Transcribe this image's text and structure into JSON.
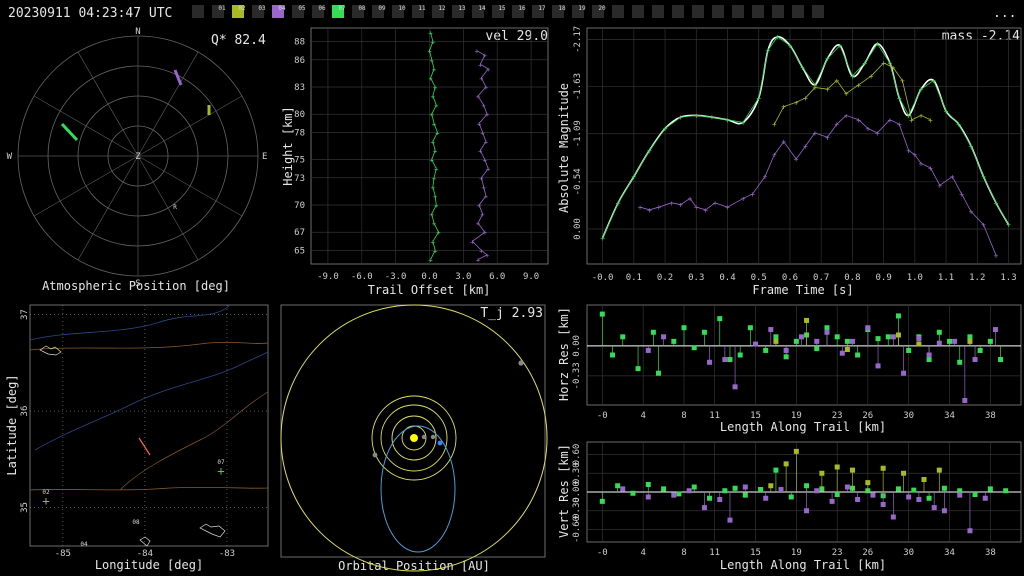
{
  "header": {
    "timestamp": "20230911 04:23:47 UTC",
    "menu": "..."
  },
  "station_badges": [
    "01",
    "02",
    "03",
    "04",
    "05",
    "06",
    "07",
    "08",
    "09",
    "10",
    "11",
    "12",
    "13",
    "14",
    "15",
    "16",
    "17",
    "18",
    "19",
    "20"
  ],
  "colors": {
    "green": "#33dd55",
    "purple": "#9966cc",
    "olive": "#aabb22",
    "white": "#ffffff",
    "yellow": "#e0e060",
    "blue": "#3388ff"
  },
  "panels": {
    "polar": {
      "title": "Atmospheric Position [deg]",
      "stat": "Q* 82.4",
      "compass": {
        "n": "N",
        "s": "S",
        "e": "E",
        "w": "W",
        "z": "Z",
        "r": "R"
      }
    },
    "height": {
      "title": "Trail Offset [km]",
      "ylabel": "Height [km]",
      "stat": "vel 29.0"
    },
    "mag": {
      "title": "Frame Time [s]",
      "ylabel": "Absolute Magnitude",
      "stat": "mass -2.14"
    },
    "map": {
      "title": "Longitude [deg]",
      "ylabel": "Latitude [deg]",
      "station_labels": [
        "02",
        "07",
        "08",
        "04"
      ]
    },
    "orbit": {
      "title": "Orbital Position [AU]",
      "stat": "T_j 2.93"
    },
    "horz": {
      "title": "Length Along Trail [km]",
      "ylabel": "Horz Res [km]"
    },
    "vert": {
      "title": "Length Along Trail [km]",
      "ylabel": "Vert Res [km]"
    }
  },
  "chart_data": [
    {
      "type": "scatter",
      "title": "",
      "xlabel": "Trail Offset [km]",
      "ylabel": "Height [km]",
      "x_ticks": [
        "-9.0",
        "-6.0",
        "-3.0",
        "0.0",
        "3.0",
        "6.0",
        "9.0"
      ],
      "y_ticks": [
        "65",
        "67",
        "70",
        "73",
        "75",
        "78",
        "80",
        "83",
        "86",
        "88"
      ],
      "xlim": [
        -10.5,
        10.5
      ],
      "ylim": [
        63.5,
        89.5
      ],
      "series": [
        {
          "color": "green",
          "x": [
            0.1,
            0.3,
            0.0,
            0.2,
            0.4,
            0.1,
            0.5,
            0.3,
            0.6,
            0.2,
            0.4,
            0.7,
            0.3,
            0.5,
            0.2,
            0.6,
            0.4,
            0.3,
            0.5,
            0.6,
            0.2,
            0.4,
            0.8,
            0.3,
            0.5,
            0.1
          ],
          "y": [
            89,
            88,
            87,
            86,
            85,
            84,
            83,
            82,
            81,
            80,
            79,
            78,
            77,
            76,
            75,
            74,
            73,
            72,
            71,
            70,
            69,
            68,
            67,
            66,
            65,
            64
          ]
        },
        {
          "color": "purple",
          "x": [
            4.2,
            4.9,
            4.5,
            5.2,
            4.6,
            5.0,
            4.3,
            4.8,
            5.1,
            4.4,
            4.7,
            5.0,
            4.5,
            4.9,
            5.2,
            4.6,
            4.8,
            5.0,
            4.4,
            4.7,
            4.3,
            4.9,
            3.8,
            4.6,
            5.1,
            4.3
          ],
          "y": [
            87,
            86.5,
            85.5,
            85,
            84,
            83,
            82,
            81,
            80,
            79,
            78,
            77,
            76,
            75,
            74,
            73,
            72,
            71,
            70,
            69,
            68,
            67,
            66,
            65,
            64.5,
            64
          ]
        }
      ]
    },
    {
      "type": "line",
      "title": "",
      "xlabel": "Frame Time [s]",
      "ylabel": "Absolute Magnitude",
      "x_ticks": [
        "-0.0",
        "0.1",
        "0.2",
        "0.3",
        "0.4",
        "0.5",
        "0.6",
        "0.7",
        "0.8",
        "0.9",
        "1.0",
        "1.1",
        "1.2",
        "1.3"
      ],
      "y_ticks": [
        "0.00",
        "-0.54",
        "-1.09",
        "-1.63",
        "-2.17"
      ],
      "xlim": [
        -0.05,
        1.34
      ],
      "ylim": [
        0.4,
        -2.3
      ],
      "series": [
        {
          "color": "white",
          "smooth": true,
          "x": [
            0.0,
            0.05,
            0.1,
            0.15,
            0.2,
            0.25,
            0.3,
            0.35,
            0.4,
            0.45,
            0.5,
            0.53,
            0.56,
            0.6,
            0.64,
            0.68,
            0.72,
            0.76,
            0.8,
            0.84,
            0.88,
            0.92,
            0.95,
            0.98,
            1.02,
            1.06,
            1.1,
            1.14,
            1.18,
            1.22,
            1.26,
            1.3
          ],
          "y": [
            0.1,
            -0.3,
            -0.6,
            -0.9,
            -1.15,
            -1.28,
            -1.3,
            -1.28,
            -1.25,
            -1.22,
            -1.5,
            -2.05,
            -2.2,
            -2.1,
            -1.85,
            -1.65,
            -1.95,
            -2.1,
            -1.75,
            -1.9,
            -2.12,
            -1.9,
            -1.5,
            -1.3,
            -1.6,
            -1.7,
            -1.35,
            -1.2,
            -0.95,
            -0.6,
            -0.3,
            -0.05
          ]
        },
        {
          "color": "green",
          "markers": true,
          "x": [
            0.0,
            0.05,
            0.1,
            0.15,
            0.2,
            0.25,
            0.3,
            0.35,
            0.4,
            0.45,
            0.5,
            0.53,
            0.56,
            0.6,
            0.64,
            0.68,
            0.72,
            0.76,
            0.8,
            0.84,
            0.88,
            0.92,
            0.95,
            0.98,
            1.02,
            1.06,
            1.1,
            1.14,
            1.18,
            1.22,
            1.26,
            1.3
          ],
          "y": [
            0.1,
            -0.3,
            -0.6,
            -0.9,
            -1.15,
            -1.28,
            -1.3,
            -1.28,
            -1.25,
            -1.22,
            -1.5,
            -2.05,
            -2.2,
            -2.1,
            -1.85,
            -1.65,
            -1.95,
            -2.1,
            -1.75,
            -1.9,
            -2.12,
            -1.9,
            -1.5,
            -1.3,
            -1.6,
            -1.7,
            -1.35,
            -1.2,
            -0.95,
            -0.6,
            -0.3,
            -0.05
          ]
        },
        {
          "color": "olive",
          "markers": true,
          "x": [
            0.55,
            0.58,
            0.62,
            0.65,
            0.68,
            0.72,
            0.75,
            0.78,
            0.82,
            0.86,
            0.9,
            0.93,
            0.96,
            0.99,
            1.02,
            1.05
          ],
          "y": [
            -1.2,
            -1.4,
            -1.45,
            -1.5,
            -1.62,
            -1.6,
            -1.7,
            -1.55,
            -1.65,
            -1.75,
            -1.9,
            -1.85,
            -1.7,
            -1.25,
            -1.3,
            -1.25
          ]
        },
        {
          "color": "purple",
          "markers": true,
          "x": [
            0.12,
            0.15,
            0.18,
            0.22,
            0.25,
            0.28,
            0.3,
            0.33,
            0.36,
            0.4,
            0.45,
            0.48,
            0.52,
            0.55,
            0.58,
            0.62,
            0.65,
            0.68,
            0.72,
            0.75,
            0.78,
            0.82,
            0.85,
            0.88,
            0.92,
            0.95,
            0.98,
            1.0,
            1.02,
            1.05,
            1.08,
            1.12,
            1.15,
            1.18,
            1.22,
            1.26
          ],
          "y": [
            -0.25,
            -0.22,
            -0.25,
            -0.3,
            -0.28,
            -0.35,
            -0.25,
            -0.22,
            -0.3,
            -0.25,
            -0.35,
            -0.4,
            -0.6,
            -0.85,
            -1.0,
            -0.8,
            -0.95,
            -1.1,
            -1.05,
            -1.2,
            -1.3,
            -1.25,
            -1.15,
            -1.1,
            -1.25,
            -1.2,
            -0.9,
            -0.85,
            -0.75,
            -0.7,
            -0.5,
            -0.6,
            -0.4,
            -0.2,
            -0.05,
            0.3
          ]
        }
      ]
    },
    {
      "type": "scatter",
      "title": "",
      "xlabel": "Length Along Trail [km]",
      "ylabel": "Horz Res [km]",
      "x_ticks": [
        "-0",
        "4",
        "8",
        "11",
        "15",
        "19",
        "23",
        "26",
        "30",
        "34",
        "38"
      ],
      "y_ticks": [
        "0.00",
        "-0.33"
      ],
      "xlim": [
        -1.5,
        41
      ],
      "ylim": [
        -0.65,
        0.45
      ],
      "series": [
        {
          "color": "green",
          "x": [
            0,
            1,
            2,
            3.5,
            5,
            5.5,
            7,
            8,
            9,
            10,
            11.5,
            12.5,
            13.5,
            14.5,
            16,
            17,
            18,
            19,
            20,
            21,
            22,
            23,
            24,
            25,
            26,
            27,
            28,
            29,
            30,
            31,
            32,
            33,
            34,
            35,
            36,
            37,
            38,
            39
          ],
          "y": [
            0.35,
            -0.1,
            0.1,
            -0.25,
            0.15,
            -0.3,
            0.05,
            0.2,
            -0.02,
            0.15,
            0.3,
            -0.15,
            -0.1,
            0.2,
            -0.05,
            0.1,
            -0.12,
            0.05,
            0.12,
            -0.03,
            0.2,
            0.1,
            0.05,
            -0.1,
            0.18,
            0.08,
            0.1,
            0.33,
            -0.05,
            0.1,
            -0.15,
            0.15,
            0.05,
            -0.18,
            0.1,
            -0.05,
            0.05,
            -0.15
          ]
        },
        {
          "color": "purple",
          "x": [
            4.5,
            6,
            10.5,
            12,
            13,
            15,
            16.5,
            18,
            19.5,
            21,
            22,
            23.5,
            24.5,
            26,
            27,
            28.5,
            29.5,
            31,
            32,
            33,
            34.5,
            35.5,
            36.5,
            38.5
          ],
          "y": [
            -0.05,
            0.1,
            -0.18,
            -0.15,
            -0.45,
            0.02,
            0.18,
            -0.05,
            0.1,
            0.05,
            0.15,
            -0.08,
            0.05,
            0.2,
            -0.22,
            0.1,
            -0.3,
            0.08,
            -0.1,
            0.03,
            0.05,
            -0.6,
            -0.15,
            0.18
          ]
        },
        {
          "color": "olive",
          "x": [
            17,
            20,
            24,
            29,
            31,
            36
          ],
          "y": [
            0.05,
            0.28,
            -0.04,
            0.12,
            0.02,
            0.05
          ]
        }
      ]
    },
    {
      "type": "scatter",
      "title": "",
      "xlabel": "Length Along Trail [km]",
      "ylabel": "Vert Res [km]",
      "x_ticks": [
        "-0",
        "4",
        "8",
        "11",
        "15",
        "19",
        "23",
        "26",
        "30",
        "34",
        "38"
      ],
      "y_ticks": [
        "0.60",
        "0.30",
        "0.00",
        "-0.30",
        "-0.60"
      ],
      "xlim": [
        -1.5,
        41
      ],
      "ylim": [
        -0.8,
        0.8
      ],
      "series": [
        {
          "color": "green",
          "x": [
            0,
            1.5,
            3,
            4.5,
            6,
            7.5,
            9,
            10.5,
            12,
            13,
            14,
            15.5,
            17,
            18.5,
            20,
            21.5,
            23,
            24.5,
            26,
            27.5,
            29,
            30.5,
            32,
            33.5,
            35,
            36.5,
            38,
            39.5
          ],
          "y": [
            -0.15,
            0.1,
            -0.02,
            0.12,
            0.05,
            -0.03,
            0.08,
            -0.1,
            0.02,
            0.06,
            -0.05,
            0.04,
            0.35,
            -0.08,
            0.1,
            0.05,
            -0.04,
            0.06,
            0.02,
            -0.06,
            0.05,
            0.03,
            -0.1,
            0.06,
            0.02,
            -0.04,
            0.05,
            0.02
          ]
        },
        {
          "color": "purple",
          "x": [
            2,
            4.5,
            7,
            8.5,
            10,
            11.5,
            12.5,
            14,
            16,
            17.5,
            20,
            21,
            22.5,
            24,
            25,
            26.5,
            27.5,
            28.5,
            30,
            31,
            32.5,
            33.5,
            35,
            36,
            37.5
          ],
          "y": [
            0.05,
            -0.08,
            -0.05,
            0.02,
            -0.25,
            -0.12,
            -0.45,
            0.08,
            -0.1,
            0.04,
            -0.3,
            0.02,
            -0.15,
            0.08,
            -0.12,
            -0.05,
            -0.2,
            -0.4,
            -0.08,
            -0.12,
            -0.25,
            -0.3,
            -0.05,
            -0.62,
            -0.1
          ]
        },
        {
          "color": "olive",
          "x": [
            16.5,
            18,
            19,
            21.5,
            23,
            24.5,
            26,
            27.5,
            29.5,
            31.5,
            33
          ],
          "y": [
            0.1,
            0.45,
            0.65,
            0.3,
            0.4,
            0.35,
            0.15,
            0.38,
            0.3,
            0.2,
            0.35
          ]
        }
      ]
    },
    {
      "type": "heatmap",
      "title": "",
      "xlabel": "Longitude [deg]",
      "ylabel": "Latitude [deg]",
      "x_ticks": [
        "-85",
        "-84",
        "-83"
      ],
      "y_ticks": [
        "37",
        "36",
        "35"
      ],
      "xlim": [
        -85.4,
        -82.5
      ],
      "ylim": [
        34.6,
        37.1
      ]
    }
  ]
}
